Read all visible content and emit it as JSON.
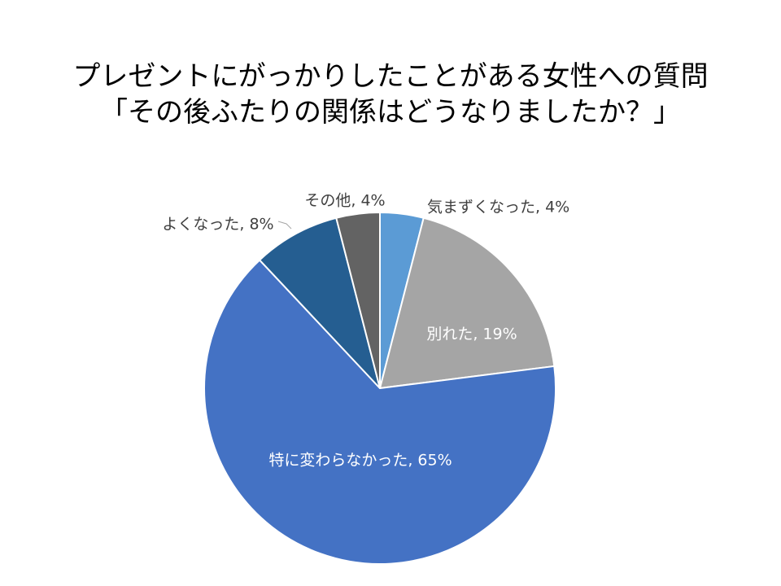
{
  "title_lines": [
    "プレゼントにがっかりしたことがある女性への質問",
    "「その後ふたりの関係はどうなりましたか？」"
  ],
  "chart_data": {
    "type": "pie",
    "title": "プレゼントにがっかりしたことがある女性への質問 「その後ふたりの関係はどうなりましたか？」",
    "slices": [
      {
        "label": "気まずくなった",
        "value": 4,
        "display": "気まずくなった, 4%",
        "color": "#5B9BD5",
        "label_inside": false
      },
      {
        "label": "別れた",
        "value": 19,
        "display": "別れた, 19%",
        "color": "#A5A5A5",
        "label_inside": true
      },
      {
        "label": "特に変わらなかった",
        "value": 65,
        "display": "特に変わらなかった, 65%",
        "color": "#4472C4",
        "label_inside": true
      },
      {
        "label": "よくなった",
        "value": 8,
        "display": "よくなった, 8%",
        "color": "#255E91",
        "label_inside": false
      },
      {
        "label": "その他",
        "value": 4,
        "display": "その他, 4%",
        "color": "#636363",
        "label_inside": false
      }
    ],
    "start": "12 o'clock",
    "direction": "clockwise",
    "legend": "none",
    "label_color_inside": "#FFFFFF",
    "label_color_outside": "#404040"
  }
}
